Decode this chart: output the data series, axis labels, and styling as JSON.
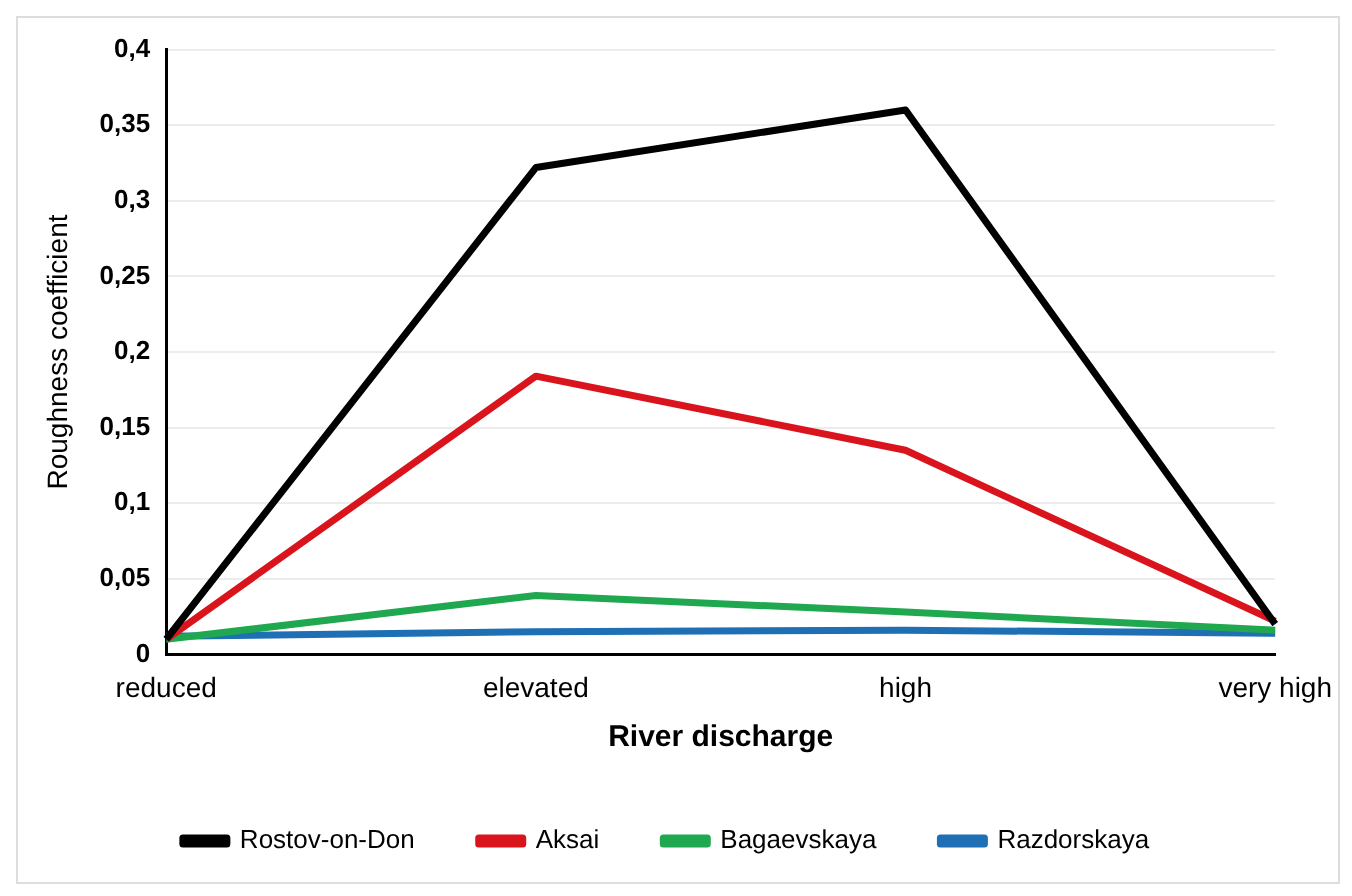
{
  "chart_data": {
    "type": "line",
    "xlabel": "River discharge",
    "ylabel": "Roughness coefficient",
    "categories": [
      "reduced",
      "elevated",
      "high",
      "very high"
    ],
    "series": [
      {
        "name": "Rostov-on-Don",
        "color": "#000000",
        "values": [
          0.01,
          0.322,
          0.36,
          0.02
        ]
      },
      {
        "name": "Aksai",
        "color": "#d9141c",
        "values": [
          0.01,
          0.184,
          0.135,
          0.022
        ]
      },
      {
        "name": "Bagaevskaya",
        "color": "#1fa84f",
        "values": [
          0.01,
          0.039,
          0.028,
          0.016
        ]
      },
      {
        "name": "Razdorskaya",
        "color": "#1e6fb4",
        "values": [
          0.012,
          0.015,
          0.016,
          0.014
        ]
      }
    ],
    "ylim": [
      0,
      0.4
    ],
    "yticks": [
      0,
      {
        "value": 0.05,
        "label": "0,05"
      },
      {
        "value": 0.1,
        "label": "0,1"
      },
      {
        "value": 0.15,
        "label": "0,15"
      },
      {
        "value": 0.2,
        "label": "0,2"
      },
      {
        "value": 0.25,
        "label": "0,25"
      },
      {
        "value": 0.3,
        "label": "0,3"
      },
      {
        "value": 0.35,
        "label": "0,35"
      },
      {
        "value": 0.4,
        "label": "0,4"
      }
    ],
    "grid": "y",
    "legend": "bottom",
    "marker": "none",
    "line_style": "solid"
  }
}
